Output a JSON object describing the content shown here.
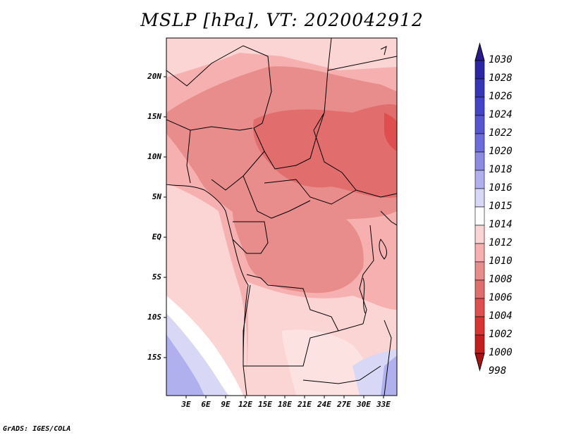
{
  "title": "MSLP [hPa], VT: 2020042912",
  "credit": "GrADS: IGES/COLA",
  "map": {
    "lat_labels": [
      "20N",
      "15N",
      "10N",
      "5N",
      "EQ",
      "5S",
      "10S",
      "15S"
    ],
    "lon_labels": [
      "3E",
      "6E",
      "9E",
      "12E",
      "15E",
      "18E",
      "21E",
      "24E",
      "27E",
      "30E",
      "33E"
    ],
    "lon_range": [
      0,
      35
    ],
    "lat_range": [
      -20,
      24
    ]
  },
  "colorbar": {
    "levels": [
      "1030",
      "1028",
      "1026",
      "1024",
      "1022",
      "1020",
      "1018",
      "1016",
      "1015",
      "1014",
      "1012",
      "1010",
      "1008",
      "1006",
      "1004",
      "1002",
      "1000",
      "998"
    ],
    "colors": [
      "#2a1a8c",
      "#2b27a4",
      "#3636b9",
      "#4444c8",
      "#5656d2",
      "#6c6cdc",
      "#8b8be4",
      "#b0b0ee",
      "#d8d8f6",
      "#ffffff",
      "#fbd4d4",
      "#f6b0b0",
      "#e88c8c",
      "#e26d6d",
      "#e04f4f",
      "#d93434",
      "#c41f1f",
      "#a81414"
    ]
  },
  "chart_data": {
    "type": "heatmap",
    "title": "MSLP [hPa], VT: 2020042912",
    "variable": "Mean sea level pressure",
    "units": "hPa",
    "valid_time": "2020042912",
    "x_ticks": [
      "3E",
      "6E",
      "9E",
      "12E",
      "15E",
      "18E",
      "21E",
      "24E",
      "27E",
      "30E",
      "33E"
    ],
    "y_ticks": [
      "20N",
      "15N",
      "10N",
      "5N",
      "EQ",
      "5S",
      "10S",
      "15S"
    ],
    "xlim": [
      0,
      35
    ],
    "ylim": [
      -20,
      24
    ],
    "color_levels": [
      998,
      1000,
      1002,
      1004,
      1006,
      1008,
      1010,
      1012,
      1014,
      1015,
      1016,
      1018,
      1020,
      1022,
      1024,
      1026,
      1028,
      1030
    ]
  }
}
